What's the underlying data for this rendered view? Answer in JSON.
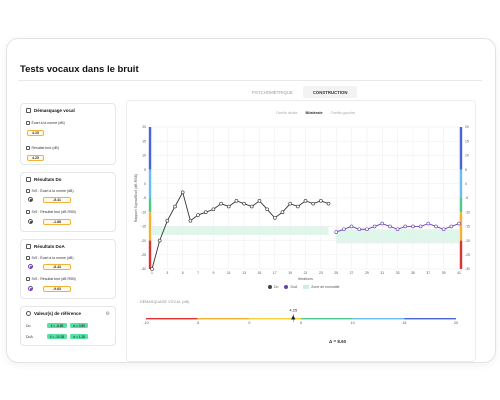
{
  "page_title": "Tests vocaux dans le bruit",
  "tabs": [
    {
      "label": "PSYCHOMÉTRIQUE",
      "active": false
    },
    {
      "label": "CONSTRUCTION",
      "active": true
    }
  ],
  "subtabs": [
    {
      "label": "Oreille droite",
      "active": false
    },
    {
      "label": "Bilatérale",
      "active": true
    },
    {
      "label": "Oreille gauche",
      "active": false
    }
  ],
  "left": {
    "demasquage": {
      "title": "Démasquage vocal",
      "ecart_label": "Écart à la norme (dB)",
      "ecart_value": "4.25",
      "brut_label": "Résultat brut (dB)",
      "brut_value": "4.25"
    },
    "do": {
      "title": "Résultats Do",
      "ecart_label": "SrS : Écart à la norme (dB)",
      "ecart_value": "-5.41",
      "brut_label": "SrS : Résultat brut (dB RSB)",
      "brut_value": "-1.88"
    },
    "doa": {
      "title": "Résultats DoA",
      "ecart_label": "SrS : Écart à la norme (dB)",
      "ecart_value": "-8.43",
      "brut_label": "SrS : Résultat brut (dB RSB)",
      "brut_value": "-9.63"
    },
    "reference": {
      "title": "Valeur(s) de référence",
      "rows": [
        {
          "label": "Do",
          "mean": "x̄ = -8.89",
          "sd": "σ = 0.89"
        },
        {
          "label": "DoA",
          "mean": "x̄ = -10.38",
          "sd": "σ = 1.28"
        }
      ]
    }
  },
  "chart_data": {
    "type": "line",
    "xlabel": "Itérations",
    "ylabel": "Rapport Signal/Bruit (dB RSB)",
    "x_ticks": [
      "1",
      "3",
      "5",
      "7",
      "9",
      "11",
      "13",
      "15",
      "17",
      "19",
      "21",
      "23",
      "25",
      "27",
      "29",
      "31",
      "33",
      "35",
      "37",
      "39",
      "41"
    ],
    "y_ticks": [
      "20",
      "15",
      "10",
      "5",
      "0",
      "-5",
      "-10",
      "-15",
      "-20",
      "-25",
      "-30"
    ],
    "ylim": [
      -30,
      20
    ],
    "xlim": [
      1,
      41
    ],
    "series": [
      {
        "name": "Do",
        "color": "#333333",
        "x": [
          1,
          2,
          3,
          4,
          5,
          6,
          7,
          8,
          9,
          10,
          11,
          12,
          13,
          14,
          15,
          16,
          17,
          18,
          19,
          20,
          21,
          22,
          23,
          24
        ],
        "y": [
          -30,
          -20,
          -13,
          -8,
          -3,
          -13,
          -11,
          -10,
          -9,
          -7,
          -8,
          -6,
          -7,
          -8,
          -6,
          -9,
          -12,
          -10,
          -7,
          -8,
          -6,
          -7,
          -6,
          -7
        ]
      },
      {
        "name": "DoA",
        "color": "#6a3fb4",
        "x": [
          25,
          26,
          27,
          28,
          29,
          30,
          31,
          32,
          33,
          34,
          35,
          36,
          37,
          38,
          39,
          40,
          41
        ],
        "y": [
          -17,
          -16,
          -15,
          -16,
          -16,
          -15,
          -14,
          -15,
          -16,
          -15,
          -15,
          -15,
          -14,
          -15,
          -16,
          -15,
          -14
        ]
      }
    ],
    "norm_zones": [
      {
        "x": [
          1,
          24
        ],
        "y": [
          -15,
          -18
        ]
      },
      {
        "x": [
          25,
          41
        ],
        "y": [
          -16,
          -21
        ]
      }
    ],
    "legend": [
      "Do",
      "DoA",
      "Zone de normalité"
    ],
    "legend_placement": "bottom-center"
  },
  "demasquage_scale": {
    "title": "DÉMASQUAGE VOCAL (dB)",
    "ticks": [
      "-10",
      "-5",
      "0",
      "5",
      "10",
      "15",
      "20"
    ],
    "value": "4.25",
    "delta_label": "Δ = 8.60"
  },
  "colors": {
    "accent_purple": "#6a3fb4",
    "pill_orange": "#f2b236",
    "norm_green": "#58e0a5"
  }
}
